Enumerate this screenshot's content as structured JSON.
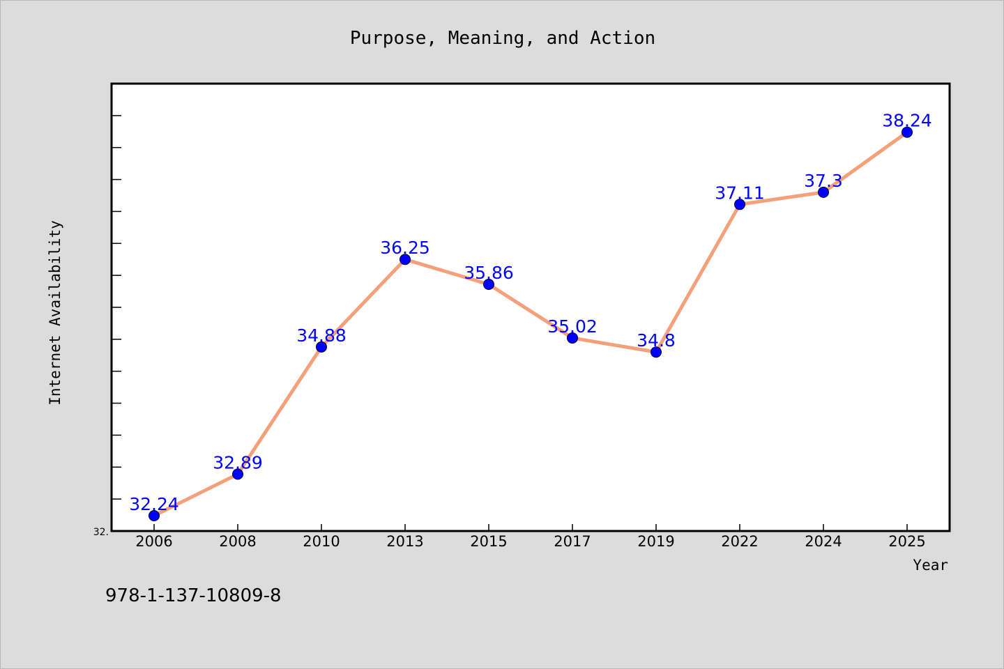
{
  "footer_text": "978-1-137-10809-8",
  "colors": {
    "background": "#dcdcdc",
    "plot_background": "#ffffff",
    "line": "#f4a07a",
    "marker": "#0000ff",
    "data_label": "#0000ff"
  },
  "chart_data": {
    "type": "line",
    "title": "Purpose, Meaning, and Action",
    "xlabel": "Year",
    "ylabel": "Internet Availability",
    "categories": [
      "2006",
      "2008",
      "2010",
      "2013",
      "2015",
      "2017",
      "2019",
      "2022",
      "2024",
      "2025"
    ],
    "series": [
      {
        "values": [
          32.24,
          32.89,
          34.88,
          36.25,
          35.86,
          35.02,
          34.8,
          37.11,
          37.3,
          38.24
        ],
        "data_labels": [
          "32.24",
          "32.89",
          "34.88",
          "36.25",
          "35.86",
          "35.02",
          "34.8",
          "37.11",
          "37.3",
          "38.24"
        ]
      }
    ],
    "ylim": [
      32.0,
      39.0
    ],
    "y_tick_labels": [
      "32."
    ],
    "grid": false,
    "legend": "none"
  }
}
